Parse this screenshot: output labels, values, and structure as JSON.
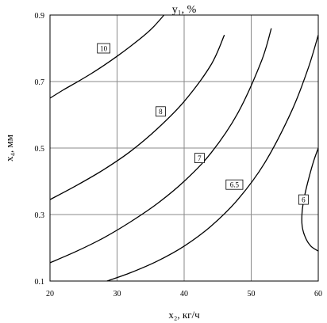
{
  "chart_data": {
    "type": "line",
    "title": "y₁, %",
    "xlabel": "x₂, кг/ч",
    "ylabel": "x₄, мм",
    "xlim": [
      20,
      60
    ],
    "ylim": [
      0.1,
      0.9
    ],
    "x_ticks": [
      "20",
      "30",
      "40",
      "50",
      "60"
    ],
    "y_ticks": [
      "0.1",
      "0.3",
      "0.5",
      "0.7",
      "0.9"
    ],
    "grid": true,
    "series": [
      {
        "name": "10",
        "x": [
          20,
          22,
          24,
          26,
          28,
          30,
          32,
          34,
          35.5,
          37
        ],
        "y": [
          0.65,
          0.675,
          0.698,
          0.722,
          0.748,
          0.776,
          0.806,
          0.838,
          0.866,
          0.9
        ],
        "label_at": [
          28,
          0.8
        ]
      },
      {
        "name": "8",
        "x": [
          20,
          24,
          28,
          32,
          36,
          40,
          44,
          46
        ],
        "y": [
          0.345,
          0.388,
          0.435,
          0.49,
          0.558,
          0.64,
          0.75,
          0.84
        ],
        "label_at": [
          36.5,
          0.61
        ]
      },
      {
        "name": "7",
        "x": [
          20,
          24,
          28,
          32,
          36,
          40,
          44,
          48,
          51.5,
          53
        ],
        "y": [
          0.155,
          0.19,
          0.23,
          0.278,
          0.333,
          0.4,
          0.485,
          0.605,
          0.76,
          0.86
        ],
        "label_at": [
          42.3,
          0.47
        ]
      },
      {
        "name": "6.5",
        "x": [
          28.5,
          32,
          36,
          40,
          44,
          48,
          52,
          56,
          58.5,
          60
        ],
        "y": [
          0.1,
          0.125,
          0.16,
          0.205,
          0.265,
          0.345,
          0.455,
          0.61,
          0.74,
          0.84
        ],
        "label_at": [
          47.5,
          0.39
        ]
      },
      {
        "name": "6",
        "x": [
          60,
          59.3,
          58.6,
          58.0,
          57.6,
          57.6,
          58.1,
          58.9,
          60
        ],
        "y": [
          0.5,
          0.46,
          0.41,
          0.36,
          0.31,
          0.265,
          0.23,
          0.205,
          0.19
        ],
        "label_at": [
          57.8,
          0.345
        ]
      }
    ]
  }
}
